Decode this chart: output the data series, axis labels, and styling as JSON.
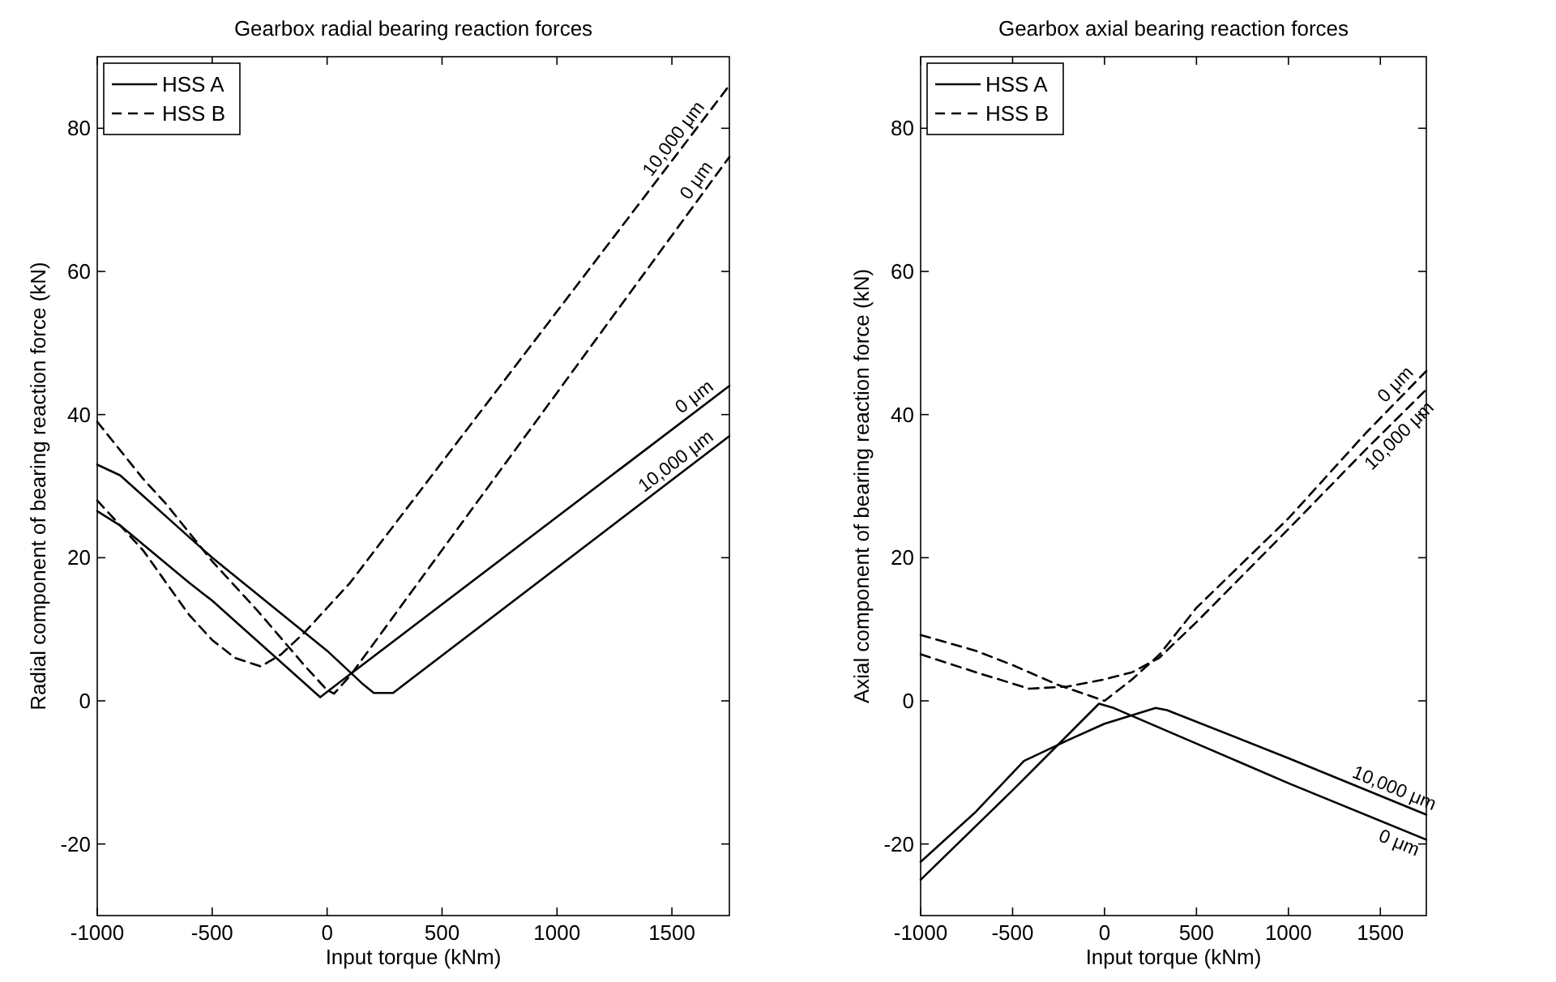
{
  "chart_data": [
    {
      "type": "line",
      "title": "Gearbox radial bearing reaction forces",
      "xlabel": "Input torque (kNm)",
      "ylabel": "Radial component of bearing reaction force (kN)",
      "xlim": [
        -1000,
        1750
      ],
      "ylim": [
        -30,
        90
      ],
      "xticks": [
        -1000,
        -500,
        0,
        500,
        1000,
        1500
      ],
      "yticks": [
        -20,
        0,
        20,
        40,
        60,
        80
      ],
      "grid": false,
      "legend": "top left",
      "series": [
        {
          "name": "HSS A",
          "color": "#000000",
          "line_style": "solid",
          "x": [
            -1000,
            -900,
            -600,
            -500,
            -30,
            50,
            1750
          ],
          "values": [
            26.5,
            24.5,
            16.5,
            14,
            0.5,
            2.5,
            44
          ]
        },
        {
          "color": "#000000",
          "line_style": "solid",
          "x": [
            -1000,
            -900,
            -500,
            0,
            150,
            203,
            287,
            1750
          ],
          "values": [
            33,
            31.5,
            20,
            7,
            2.5,
            1.1,
            1.1,
            37
          ]
        },
        {
          "name": "HSS B",
          "color": "#000000",
          "line_style": "dashed",
          "x": [
            -1000,
            -900,
            -800,
            -700,
            -500,
            -300,
            -100,
            0,
            30,
            100,
            1750
          ],
          "values": [
            39,
            35,
            31,
            27.5,
            19.5,
            12.5,
            5,
            1.5,
            1,
            3.5,
            76
          ]
        },
        {
          "color": "#000000",
          "line_style": "dashed",
          "x": [
            -1000,
            -900,
            -800,
            -700,
            -600,
            -500,
            -400,
            -288,
            -200,
            -100,
            0,
            100,
            1750
          ],
          "values": [
            28,
            24.5,
            21,
            16.5,
            12,
            8.5,
            6,
            4.8,
            6.5,
            9.5,
            13,
            16.5,
            86
          ]
        }
      ],
      "annotations": [
        {
          "text": "0 μm",
          "x": 1630,
          "y": 41.1
        },
        {
          "text": "10,000 μm",
          "x": 1550,
          "y": 32.1
        },
        {
          "text": "0 μm",
          "x": 1650,
          "y": 71.7
        },
        {
          "text": "10,000 μm",
          "x": 1550,
          "y": 77.5
        }
      ]
    },
    {
      "type": "line",
      "title": "Gearbox axial bearing reaction forces",
      "xlabel": "Input torque (kNm)",
      "ylabel": "Axial component of bearing reaction force (kN)",
      "xlim": [
        -1000,
        1750
      ],
      "ylim": [
        -30,
        90
      ],
      "xticks": [
        -1000,
        -500,
        0,
        500,
        1000,
        1500
      ],
      "yticks": [
        -20,
        0,
        20,
        40,
        60,
        80
      ],
      "grid": false,
      "legend": "top left",
      "series": [
        {
          "name": "HSS A",
          "color": "#000000",
          "line_style": "solid",
          "x": [
            -1000,
            -700,
            -438,
            -200,
            0,
            150,
            278,
            340,
            1000,
            1750
          ],
          "values": [
            -22.5,
            -15.5,
            -8.4,
            -5.5,
            -3.2,
            -2,
            -1,
            -1.3,
            -8,
            -15.9
          ]
        },
        {
          "color": "#000000",
          "line_style": "solid",
          "x": [
            -1000,
            -500,
            -30,
            50,
            1000,
            1750
          ],
          "values": [
            -25,
            -12.5,
            -0.4,
            -1,
            -11.5,
            -19.4
          ]
        },
        {
          "name": "HSS B",
          "color": "#000000",
          "line_style": "dashed",
          "x": [
            -1000,
            -700,
            -500,
            -250,
            0,
            150,
            300,
            500,
            1000,
            1424,
            1750
          ],
          "values": [
            9.2,
            7,
            5,
            2.2,
            0,
            3,
            6.5,
            13,
            25.5,
            37.5,
            46.1
          ]
        },
        {
          "color": "#000000",
          "line_style": "dashed",
          "x": [
            -1000,
            -700,
            -411,
            -200,
            0,
            150,
            297,
            500,
            1000,
            1424,
            1750
          ],
          "values": [
            6.5,
            4,
            1.7,
            2,
            3,
            4,
            6,
            11,
            24,
            35.2,
            43.5
          ]
        }
      ],
      "annotations": [
        {
          "text": "10,000 μm",
          "x": 1550,
          "y": -13.8
        },
        {
          "text": "0 μm",
          "x": 1630,
          "y": -18.1
        },
        {
          "text": "0 μm",
          "x": 1630,
          "y": 43
        },
        {
          "text": "10,000 μm",
          "x": 1550,
          "y": 38.4
        }
      ]
    }
  ]
}
